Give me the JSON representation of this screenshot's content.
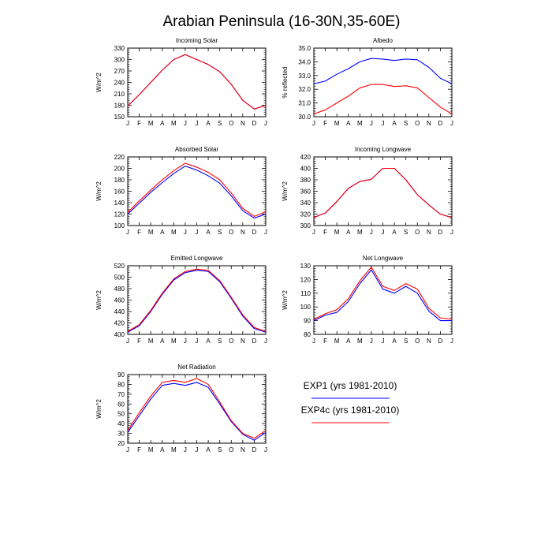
{
  "figure": {
    "title": "Arabian Peninsula (16-30N,35-60E)",
    "months": [
      "J",
      "F",
      "M",
      "A",
      "M",
      "J",
      "J",
      "A",
      "S",
      "O",
      "N",
      "D",
      "J"
    ],
    "legend": [
      {
        "label": "EXP1 (yrs 1981-2010)",
        "color": "#0000ff"
      },
      {
        "label": "EXP4c (yrs 1981-2010)",
        "color": "#ff0000"
      }
    ]
  },
  "chart_data": [
    {
      "type": "line",
      "title": "Incoming Solar",
      "ylabel": "W/m^2",
      "ylim": [
        150,
        330
      ],
      "yticks": [
        150,
        180,
        210,
        240,
        270,
        300,
        330
      ],
      "ytick_labels": [
        "150",
        "180",
        "210",
        "240",
        "270",
        "300",
        "330"
      ],
      "series": [
        {
          "name": "EXP1 (yrs 1981-2010)",
          "color": "#0000ff",
          "values": [
            178,
            208,
            240,
            272,
            300,
            313,
            300,
            287,
            268,
            235,
            193,
            170,
            180
          ]
        },
        {
          "name": "EXP4c (yrs 1981-2010)",
          "color": "#ff0000",
          "values": [
            178,
            208,
            240,
            272,
            300,
            313,
            300,
            287,
            268,
            235,
            193,
            170,
            180
          ]
        }
      ]
    },
    {
      "type": "line",
      "title": "Albedo",
      "ylabel": "% reflected",
      "ylim": [
        30.0,
        35.0
      ],
      "yticks": [
        30.0,
        31.0,
        32.0,
        33.0,
        34.0,
        35.0
      ],
      "ytick_labels": [
        "30.0",
        "31.0",
        "32.0",
        "33.0",
        "34.0",
        "35.0"
      ],
      "series": [
        {
          "name": "EXP1 (yrs 1981-2010)",
          "color": "#0000ff",
          "values": [
            32.4,
            32.6,
            33.1,
            33.5,
            34.0,
            34.25,
            34.2,
            34.1,
            34.2,
            34.15,
            33.6,
            32.8,
            32.4
          ]
        },
        {
          "name": "EXP4c (yrs 1981-2010)",
          "color": "#ff0000",
          "values": [
            30.2,
            30.5,
            31.0,
            31.5,
            32.1,
            32.35,
            32.35,
            32.2,
            32.25,
            32.1,
            31.4,
            30.7,
            30.2
          ]
        }
      ]
    },
    {
      "type": "line",
      "title": "Absorbed Solar",
      "ylabel": "W/m^2",
      "ylim": [
        100,
        220
      ],
      "yticks": [
        100,
        120,
        140,
        160,
        180,
        200,
        220
      ],
      "ytick_labels": [
        "100",
        "120",
        "140",
        "160",
        "180",
        "200",
        "220"
      ],
      "series": [
        {
          "name": "EXP1 (yrs 1981-2010)",
          "color": "#0000ff",
          "values": [
            120,
            139,
            158,
            175,
            191,
            204,
            197,
            187,
            174,
            152,
            126,
            113,
            120
          ]
        },
        {
          "name": "EXP4c (yrs 1981-2010)",
          "color": "#ff0000",
          "values": [
            123,
            143,
            162,
            180,
            196,
            209,
            202,
            193,
            180,
            157,
            130,
            116,
            124
          ]
        }
      ]
    },
    {
      "type": "line",
      "title": "Incoming Longwave",
      "ylabel": "W/m^2",
      "ylim": [
        300,
        420
      ],
      "yticks": [
        300,
        320,
        340,
        360,
        380,
        400,
        420
      ],
      "ytick_labels": [
        "300",
        "320",
        "340",
        "360",
        "380",
        "400",
        "420"
      ],
      "series": [
        {
          "name": "EXP1 (yrs 1981-2010)",
          "color": "#0000ff",
          "values": [
            314,
            322,
            342,
            365,
            377,
            381,
            400,
            400,
            380,
            354,
            336,
            320,
            314
          ]
        },
        {
          "name": "EXP4c (yrs 1981-2010)",
          "color": "#ff0000",
          "values": [
            314,
            322,
            342,
            365,
            377,
            381,
            400,
            400,
            380,
            354,
            336,
            320,
            314
          ]
        }
      ]
    },
    {
      "type": "line",
      "title": "Emitted Longwave",
      "ylabel": "W/m^2",
      "ylim": [
        400,
        520
      ],
      "yticks": [
        400,
        420,
        440,
        460,
        480,
        500,
        520
      ],
      "ytick_labels": [
        "400",
        "420",
        "440",
        "460",
        "480",
        "500",
        "520"
      ],
      "series": [
        {
          "name": "EXP1 (yrs 1981-2010)",
          "color": "#0000ff",
          "values": [
            404,
            415,
            440,
            470,
            495,
            508,
            512,
            510,
            492,
            463,
            432,
            410,
            404
          ]
        },
        {
          "name": "EXP4c (yrs 1981-2010)",
          "color": "#ff0000",
          "values": [
            405,
            417,
            442,
            472,
            497,
            510,
            514,
            512,
            494,
            465,
            434,
            412,
            405
          ]
        }
      ]
    },
    {
      "type": "line",
      "title": "Net Longwave",
      "ylabel": "W/m^2",
      "ylim": [
        80,
        130
      ],
      "yticks": [
        80,
        90,
        100,
        110,
        120,
        130
      ],
      "ytick_labels": [
        "80",
        "90",
        "100",
        "110",
        "120",
        "130"
      ],
      "series": [
        {
          "name": "EXP1 (yrs 1981-2010)",
          "color": "#0000ff",
          "values": [
            90,
            94,
            96,
            104,
            117,
            127,
            113,
            110,
            115,
            110,
            97,
            90,
            90
          ]
        },
        {
          "name": "EXP4c (yrs 1981-2010)",
          "color": "#ff0000",
          "values": [
            91,
            95,
            98,
            106,
            119,
            129,
            115,
            112,
            117,
            113,
            99,
            92,
            91
          ]
        }
      ]
    },
    {
      "type": "line",
      "title": "Net Radiation",
      "ylabel": "W/m^2",
      "ylim": [
        20,
        90
      ],
      "yticks": [
        20,
        30,
        40,
        50,
        60,
        70,
        80,
        90
      ],
      "ytick_labels": [
        "20",
        "30",
        "40",
        "50",
        "60",
        "70",
        "80",
        "90"
      ],
      "series": [
        {
          "name": "EXP1 (yrs 1981-2010)",
          "color": "#0000ff",
          "values": [
            31,
            48,
            65,
            79,
            81,
            79,
            82,
            77,
            60,
            42,
            29,
            23,
            31
          ]
        },
        {
          "name": "EXP4c (yrs 1981-2010)",
          "color": "#ff0000",
          "values": [
            33,
            51,
            68,
            82,
            84,
            82,
            86,
            80,
            62,
            43,
            30,
            25,
            33
          ]
        }
      ]
    }
  ]
}
